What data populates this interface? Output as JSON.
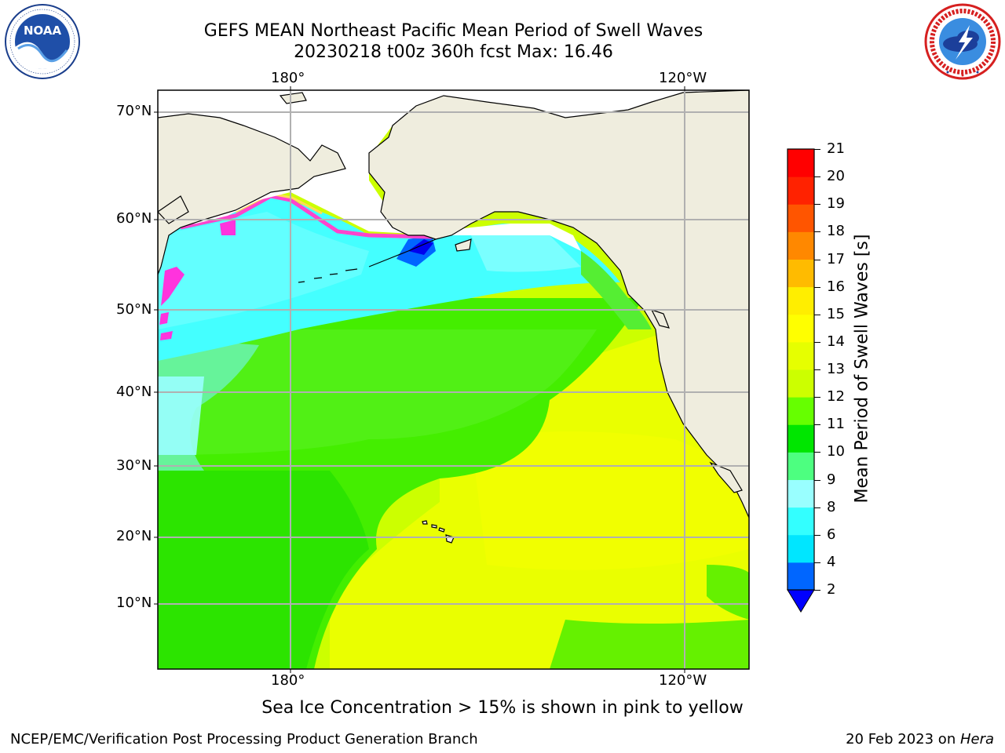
{
  "title": {
    "line1": "GEFS MEAN Northeast Pacific Mean Period of Swell Waves",
    "line2": "20230218 t00z 360h fcst   Max: 16.46"
  },
  "logos": {
    "left": {
      "name": "noaa-logo",
      "text": "NOAA",
      "ring_text": "NATIONAL OCEANIC AND ATMOSPHERIC ADMINISTRATION · U.S. DEPARTMENT OF COMMERCE"
    },
    "right": {
      "name": "nws-logo",
      "ring_text": "NATIONAL WEATHER SERVICE"
    }
  },
  "map": {
    "lon_labels_top": [
      "180°",
      "120°W"
    ],
    "lon_labels_bottom": [
      "180°",
      "120°W"
    ],
    "lat_labels": [
      "70°N",
      "60°N",
      "50°N",
      "40°N",
      "30°N",
      "20°N",
      "10°N"
    ],
    "colors": {
      "land": "#efedde",
      "ice_free_white": "#ffffff",
      "grid": "#b0b0b0"
    }
  },
  "colorbar": {
    "label": "Mean Period of Swell Waves [s]",
    "ticks": [
      "2",
      "4",
      "6",
      "8",
      "9",
      "10",
      "11",
      "12",
      "13",
      "14",
      "15",
      "16",
      "17",
      "18",
      "19",
      "20",
      "21"
    ],
    "bin_colors": [
      "#0066ff",
      "#00e6ff",
      "#33ffff",
      "#99ffff",
      "#4dff80",
      "#00e600",
      "#66ff00",
      "#ccff00",
      "#e6ff00",
      "#ffff00",
      "#ffee00",
      "#ffbb00",
      "#ff8800",
      "#ff5500",
      "#ff2200",
      "#ff0000"
    ],
    "extend_min_color": "#0000ff"
  },
  "note": "Sea Ice Concentration > 15% is shown in pink to yellow",
  "footer": {
    "left": "NCEP/EMC/Verification Post Processing Product Generation Branch",
    "date": "20 Feb 2023 on ",
    "host": "Hera"
  }
}
